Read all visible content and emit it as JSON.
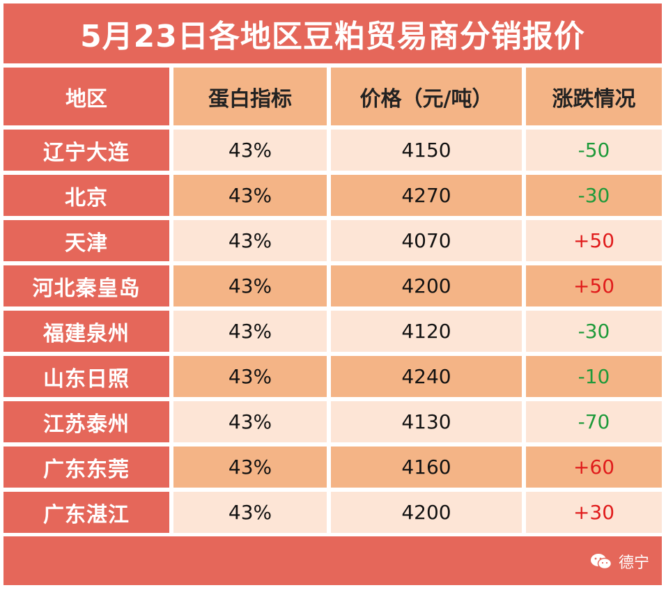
{
  "title": "5月23日各地区豆粕贸易商分销报价",
  "headers": [
    "地区",
    "蛋白指标",
    "价格（元/吨）",
    "涨跌情况"
  ],
  "rows": [
    {
      "region": "辽宁大连",
      "protein": "43%",
      "price": "4150",
      "change": "-50"
    },
    {
      "region": "北京",
      "protein": "43%",
      "price": "4270",
      "change": "-30"
    },
    {
      "region": "天津",
      "protein": "43%",
      "price": "4070",
      "change": "+50"
    },
    {
      "region": "河北秦皇岛",
      "protein": "43%",
      "price": "4200",
      "change": "+50"
    },
    {
      "region": "福建泉州",
      "protein": "43%",
      "price": "4120",
      "change": "-30"
    },
    {
      "region": "山东日照",
      "protein": "43%",
      "price": "4240",
      "change": "-10"
    },
    {
      "region": "江苏泰州",
      "protein": "43%",
      "price": "4130",
      "change": "-70"
    },
    {
      "region": "广东东莞",
      "protein": "43%",
      "price": "4160",
      "change": "+60"
    },
    {
      "region": "广东湛江",
      "protein": "43%",
      "price": "4200",
      "change": "+30"
    }
  ],
  "footer": {
    "brand": "德宁",
    "icon": "wechat-icon"
  },
  "colors": {
    "accent": "#e5675a",
    "band_dark": "#f4b486",
    "band_light": "#fde5d6",
    "up": "#e01b1b",
    "down": "#1e9a3a"
  }
}
